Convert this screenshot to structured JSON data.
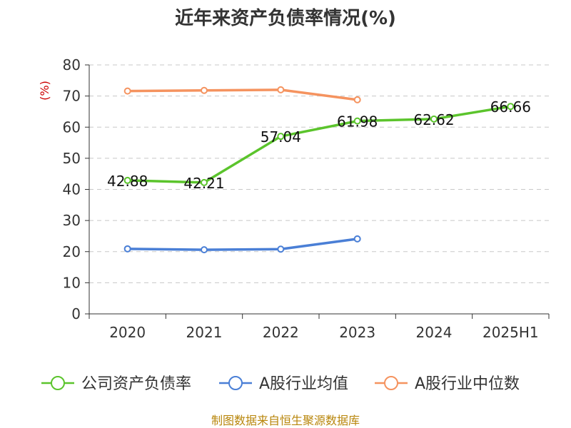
{
  "chart_data": {
    "type": "line",
    "title": "近年来资产负债率情况(%)",
    "ylabel": "(%)",
    "xlabel": "",
    "categories": [
      "2020",
      "2021",
      "2022",
      "2023",
      "2024",
      "2025H1"
    ],
    "ylim": [
      0,
      80
    ],
    "yticks": [
      0,
      10,
      20,
      30,
      40,
      50,
      60,
      70,
      80
    ],
    "grid": true,
    "legend_position": "bottom",
    "series": [
      {
        "name": "公司资产负债率",
        "color": "#5bc42c",
        "values": [
          42.88,
          42.21,
          57.04,
          61.98,
          62.62,
          66.66
        ],
        "labels": [
          "42.88",
          "42.21",
          "57.04",
          "61.98",
          "62.62",
          "66.66"
        ]
      },
      {
        "name": "A股行业均值",
        "color": "#4a7fd6",
        "values": [
          20.9,
          20.6,
          20.8,
          24.1,
          null,
          null
        ]
      },
      {
        "name": "A股行业中位数",
        "color": "#f5935f",
        "values": [
          71.6,
          71.8,
          72.0,
          68.8,
          null,
          null
        ]
      }
    ],
    "source": "制图数据来自恒生聚源数据库"
  }
}
